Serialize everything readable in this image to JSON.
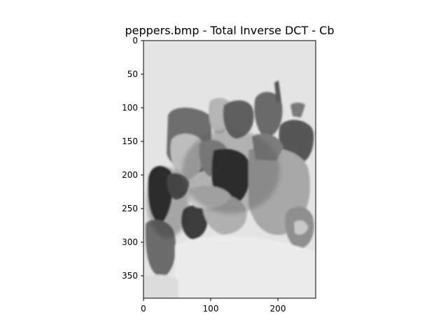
{
  "window": {
    "title": "peppers.bmp - Total Inverse DCT - Cb"
  },
  "image": {
    "description_name": "peppers-inverse-dct-cb-image",
    "colormap": "gray"
  },
  "axes": {
    "x_ticks": [
      "0",
      "100",
      "200"
    ],
    "y_ticks": [
      "0",
      "50",
      "100",
      "150",
      "200",
      "250",
      "300",
      "350"
    ],
    "xlim": [
      0,
      256
    ],
    "ylim": [
      384,
      0
    ]
  },
  "colors": {
    "background": "#ffffff",
    "frame": "#000000",
    "image_light": "#e6e6e6",
    "image_dark": "#111111"
  }
}
